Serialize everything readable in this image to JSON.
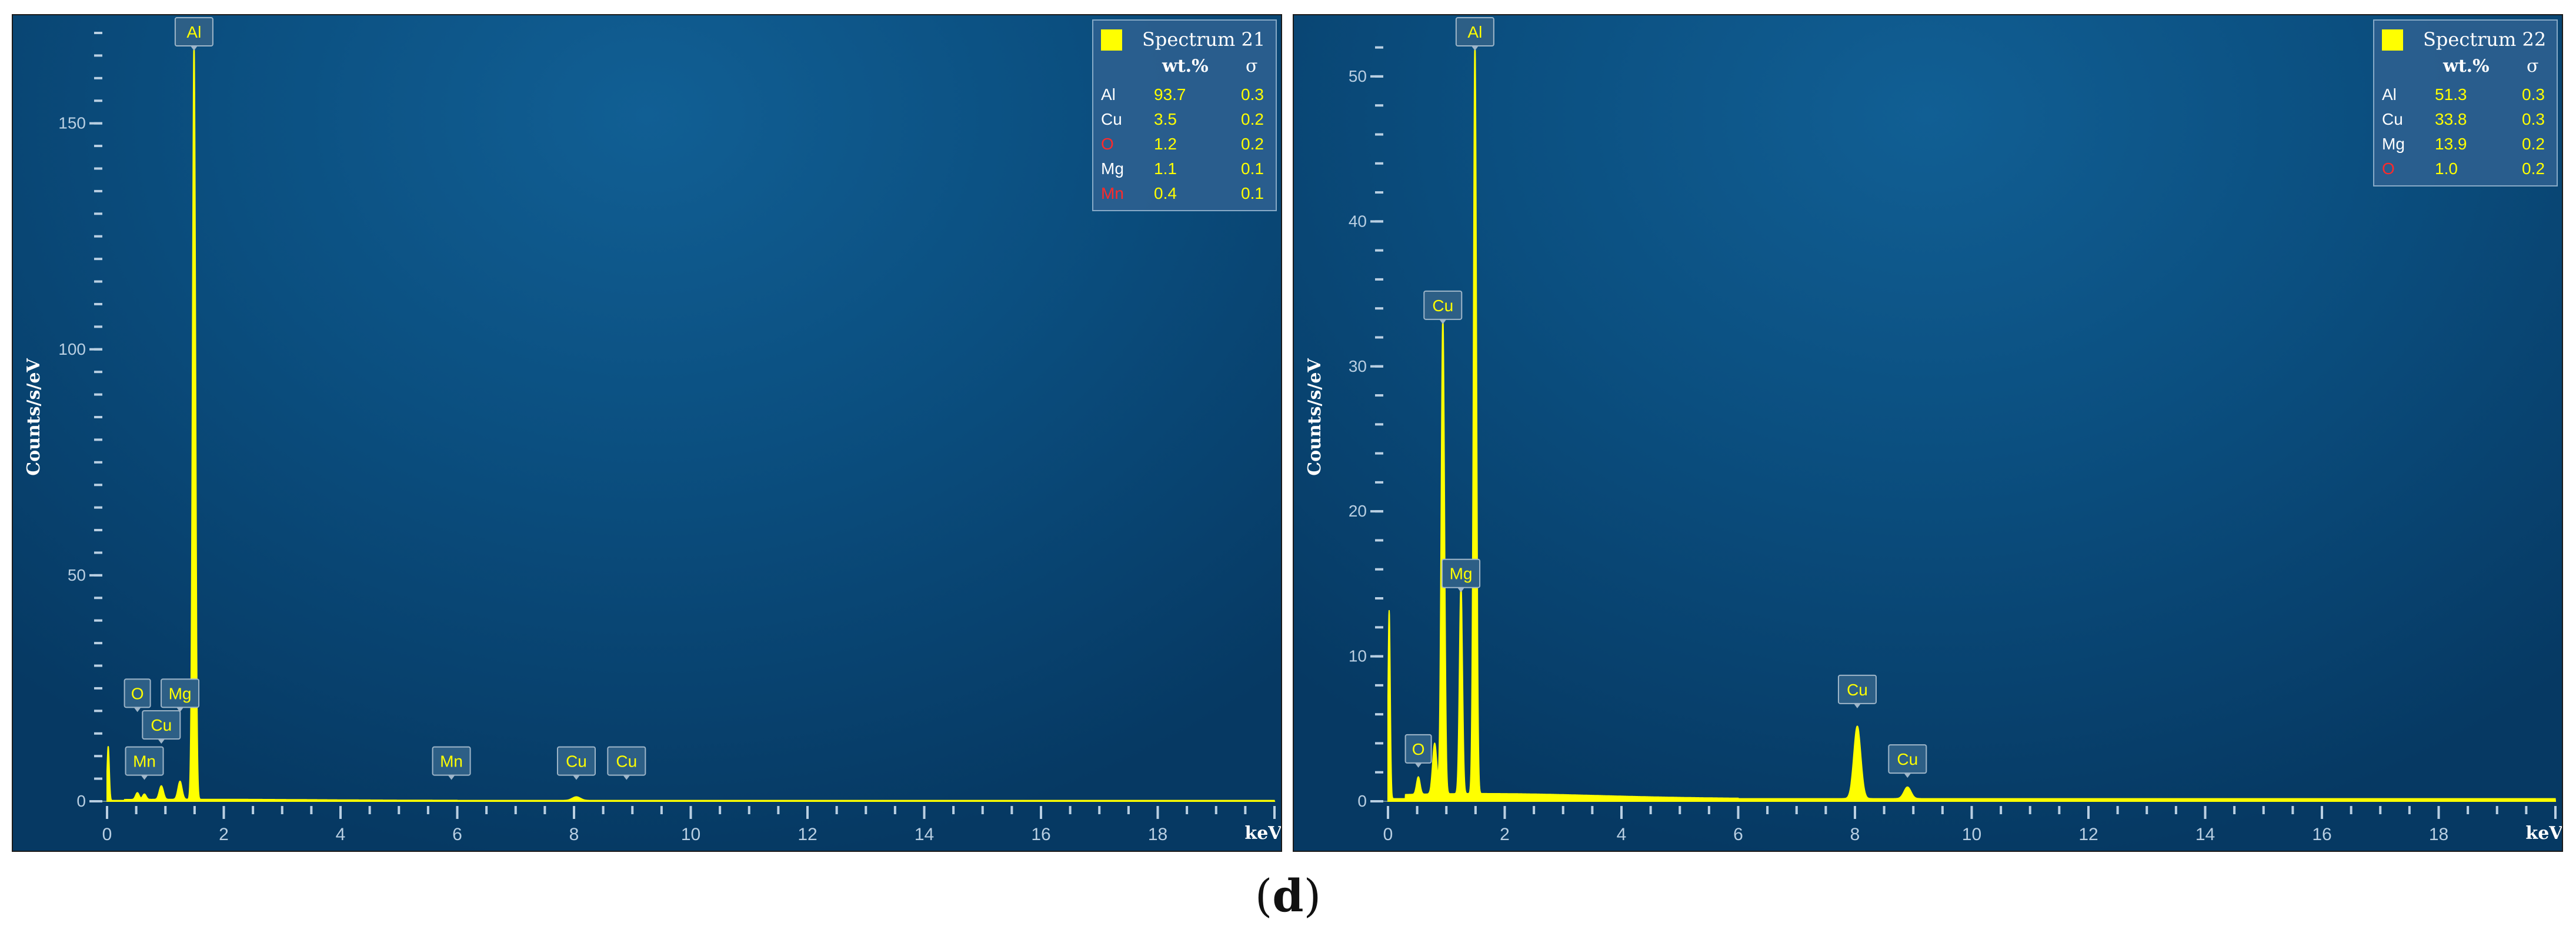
{
  "caption": {
    "open": "(",
    "letter": "d",
    "close": ")"
  },
  "colors": {
    "spectrum": "#ffff00",
    "axis": "#b9cfe2",
    "label_box": "#2d5f86",
    "table_bg": "#2b5f8f",
    "red": "#ff2a2a",
    "yellow": "#ffff00"
  },
  "chart_data": [
    {
      "type": "line",
      "legend": "Spectrum 21",
      "xlabel": "keV",
      "ylabel": "Counts/s/eV",
      "xlim": [
        0,
        20
      ],
      "ylim": [
        0,
        170
      ],
      "xticks": [
        0,
        2,
        4,
        6,
        8,
        10,
        12,
        14,
        16,
        18
      ],
      "yticks": [
        0,
        50,
        100,
        150
      ],
      "table": {
        "headers": [
          "wt.%",
          "σ"
        ],
        "rows": [
          {
            "el": "Al",
            "wt": "93.7",
            "sigma": "0.3",
            "red": false
          },
          {
            "el": "Cu",
            "wt": "3.5",
            "sigma": "0.2",
            "red": false
          },
          {
            "el": "O",
            "wt": "1.2",
            "sigma": "0.2",
            "red": true
          },
          {
            "el": "Mg",
            "wt": "1.1",
            "sigma": "0.1",
            "red": false
          },
          {
            "el": "Mn",
            "wt": "0.4",
            "sigma": "0.1",
            "red": true
          }
        ]
      },
      "peaks": [
        {
          "x": 0.02,
          "y": 12,
          "w": 0.018
        },
        {
          "x": 0.52,
          "y": 1.5,
          "w": 0.03
        },
        {
          "x": 0.64,
          "y": 1.2,
          "w": 0.03
        },
        {
          "x": 0.93,
          "y": 3,
          "w": 0.035
        },
        {
          "x": 1.25,
          "y": 4,
          "w": 0.035
        },
        {
          "x": 1.49,
          "y": 168,
          "w": 0.026
        },
        {
          "x": 8.04,
          "y": 0.8,
          "w": 0.07
        }
      ],
      "labels": [
        {
          "text": "Al",
          "x": 1.49,
          "y": 168
        },
        {
          "text": "O",
          "x": 0.52,
          "y": 20
        },
        {
          "text": "Mg",
          "x": 1.25,
          "y": 20
        },
        {
          "text": "Cu",
          "x": 0.93,
          "y": 13
        },
        {
          "text": "Mn",
          "x": 0.64,
          "y": 5
        },
        {
          "text": "Mn",
          "x": 5.9,
          "y": 5
        },
        {
          "text": "Cu",
          "x": 8.04,
          "y": 5
        },
        {
          "text": "Cu",
          "x": 8.9,
          "y": 5
        }
      ]
    },
    {
      "type": "line",
      "legend": "Spectrum 22",
      "xlabel": "keV",
      "ylabel": "Counts/s/eV",
      "xlim": [
        0,
        20
      ],
      "ylim": [
        0,
        53
      ],
      "xticks": [
        0,
        2,
        4,
        6,
        8,
        10,
        12,
        14,
        16,
        18
      ],
      "yticks": [
        0,
        10,
        20,
        30,
        40,
        50
      ],
      "table": {
        "headers": [
          "wt.%",
          "σ"
        ],
        "rows": [
          {
            "el": "Al",
            "wt": "51.3",
            "sigma": "0.3",
            "red": false
          },
          {
            "el": "Cu",
            "wt": "33.8",
            "sigma": "0.3",
            "red": false
          },
          {
            "el": "Mg",
            "wt": "13.9",
            "sigma": "0.2",
            "red": false
          },
          {
            "el": "O",
            "wt": "1.0",
            "sigma": "0.2",
            "red": true
          }
        ]
      },
      "peaks": [
        {
          "x": 0.02,
          "y": 13,
          "w": 0.018
        },
        {
          "x": 0.52,
          "y": 1.2,
          "w": 0.03
        },
        {
          "x": 0.8,
          "y": 3.5,
          "w": 0.035
        },
        {
          "x": 0.94,
          "y": 33,
          "w": 0.028
        },
        {
          "x": 1.25,
          "y": 14.5,
          "w": 0.026
        },
        {
          "x": 1.49,
          "y": 52,
          "w": 0.026
        },
        {
          "x": 8.04,
          "y": 5,
          "w": 0.06
        },
        {
          "x": 8.9,
          "y": 0.8,
          "w": 0.06
        }
      ],
      "labels": [
        {
          "text": "Al",
          "x": 1.49,
          "y": 52
        },
        {
          "text": "Cu",
          "x": 0.94,
          "y": 33
        },
        {
          "text": "Mg",
          "x": 1.25,
          "y": 14.5
        },
        {
          "text": "O",
          "x": 0.52,
          "y": 2.4
        },
        {
          "text": "Cu",
          "x": 8.04,
          "y": 6.5
        },
        {
          "text": "Cu",
          "x": 8.9,
          "y": 1.7
        }
      ]
    }
  ]
}
